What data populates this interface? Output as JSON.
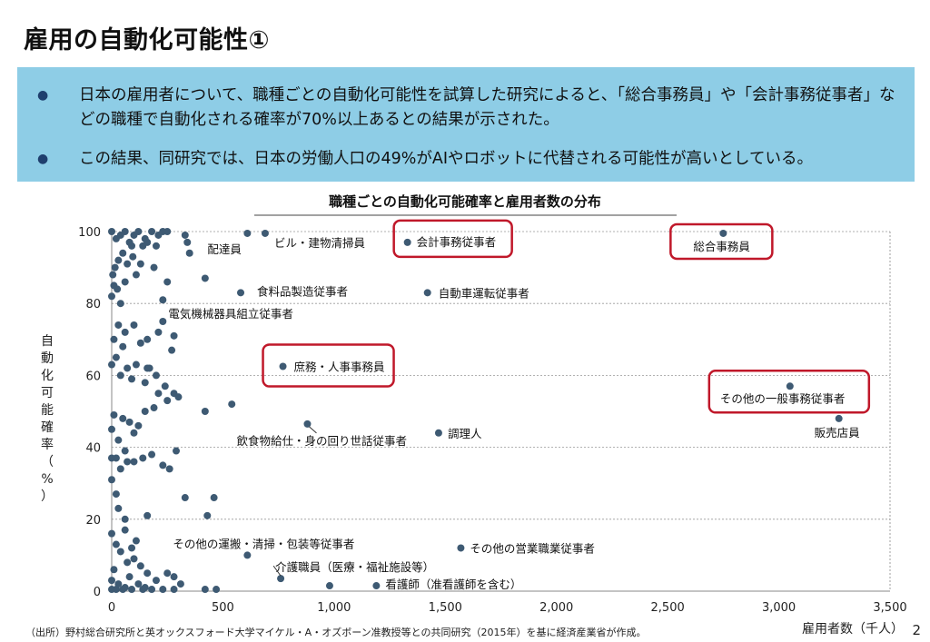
{
  "slide": {
    "title": "雇用の自動化可能性①",
    "page_number": "2",
    "source_note": "（出所）野村総合研究所と英オックスフォード大学マイケル・A・オズボーン准教授等との共同研究（2015年）を基に経済産業省が作成。"
  },
  "bullets": [
    {
      "text": "日本の雇用者について、職種ごとの自動化可能性を試算した研究によると、「総合事務員」や「会計事務従事者」などの職種で自動化される確率が70%以上あるとの結果が示された。"
    },
    {
      "text": "この結果、同研究では、日本の労働人口の49%がAIやロボットに代替される可能性が高いとしている。"
    }
  ],
  "colors": {
    "info_box_bg": "#8ecde6",
    "bullet_dot": "#1f3f6e",
    "marker": "#3e5a73",
    "highlight_box": "#c0182a",
    "grid": "#999999"
  },
  "chart_data": {
    "type": "scatter",
    "title": "職種ごとの自動化可能確率と雇用者数の分布",
    "xlabel": "雇用者数（千人）",
    "ylabel": "自動化可能確率（%）",
    "xlim": [
      0,
      3500
    ],
    "ylim": [
      0,
      100
    ],
    "x_ticks": [
      0,
      500,
      1000,
      1500,
      2000,
      2500,
      3000,
      3500
    ],
    "x_tick_labels": [
      "0",
      "500",
      "1,000",
      "1,500",
      "2,000",
      "2,500",
      "3,000",
      "3,500"
    ],
    "y_ticks": [
      0,
      20,
      40,
      60,
      80,
      100
    ],
    "y_tick_labels": [
      "0",
      "20",
      "40",
      "60",
      "80",
      "100"
    ],
    "grid": "horizontal dotted",
    "labeled_points": [
      {
        "label": "配達員",
        "x": 610,
        "y": 99.5
      },
      {
        "label": "ビル・建物清掃員",
        "x": 690,
        "y": 99.5
      },
      {
        "label": "会計事務従事者",
        "x": 1330,
        "y": 97,
        "highlight": true
      },
      {
        "label": "総合事務員",
        "x": 2750,
        "y": 99.5,
        "highlight": true
      },
      {
        "label": "食料品製造従事者",
        "x": 580,
        "y": 83
      },
      {
        "label": "電気機械器具組立従事者",
        "x": 230,
        "y": 81
      },
      {
        "label": "自動車運転従事者",
        "x": 1420,
        "y": 83
      },
      {
        "label": "庶務・人事事務員",
        "x": 770,
        "y": 62.5,
        "highlight": true
      },
      {
        "label": "その他の一般事務従事者",
        "x": 3050,
        "y": 57,
        "highlight": true
      },
      {
        "label": "販売店員",
        "x": 3270,
        "y": 48
      },
      {
        "label": "飲食物給仕・身の回り世話従事者",
        "x": 880,
        "y": 46.5
      },
      {
        "label": "調理人",
        "x": 1470,
        "y": 44
      },
      {
        "label": "その他の運搬・清掃・包装等従事者",
        "x": 610,
        "y": 10
      },
      {
        "label": "その他の営業職業従事者",
        "x": 1570,
        "y": 12
      },
      {
        "label": "介護職員（医療・福祉施設等）",
        "x": 760,
        "y": 3.5
      },
      {
        "label": "看護師（准看護師を含む）",
        "x": 1190,
        "y": 1.5
      },
      {
        "label": "",
        "x": 980,
        "y": 1.5
      }
    ],
    "unlabeled_points": [
      [
        0,
        100
      ],
      [
        20,
        98
      ],
      [
        40,
        99
      ],
      [
        60,
        100
      ],
      [
        80,
        97
      ],
      [
        100,
        99
      ],
      [
        120,
        100
      ],
      [
        150,
        98
      ],
      [
        180,
        100
      ],
      [
        210,
        99
      ],
      [
        230,
        100
      ],
      [
        250,
        100
      ],
      [
        140,
        96
      ],
      [
        160,
        97
      ],
      [
        90,
        96
      ],
      [
        50,
        94
      ],
      [
        30,
        92
      ],
      [
        70,
        91
      ],
      [
        110,
        88
      ],
      [
        10,
        85
      ],
      [
        0,
        82
      ],
      [
        25,
        84
      ],
      [
        40,
        80
      ],
      [
        5,
        88
      ],
      [
        60,
        86
      ],
      [
        15,
        90
      ],
      [
        95,
        93
      ],
      [
        130,
        91
      ],
      [
        190,
        90
      ],
      [
        200,
        96
      ],
      [
        330,
        99
      ],
      [
        340,
        97
      ],
      [
        350,
        94
      ],
      [
        420,
        87
      ],
      [
        250,
        86
      ],
      [
        230,
        75
      ],
      [
        210,
        72
      ],
      [
        280,
        71
      ],
      [
        160,
        70
      ],
      [
        130,
        69
      ],
      [
        100,
        74
      ],
      [
        60,
        72
      ],
      [
        30,
        74
      ],
      [
        10,
        70
      ],
      [
        50,
        68
      ],
      [
        20,
        65
      ],
      [
        0,
        63
      ],
      [
        40,
        60
      ],
      [
        70,
        62
      ],
      [
        90,
        59
      ],
      [
        110,
        63
      ],
      [
        150,
        58
      ],
      [
        170,
        62
      ],
      [
        200,
        60
      ],
      [
        240,
        57
      ],
      [
        280,
        55
      ],
      [
        300,
        54
      ],
      [
        250,
        53
      ],
      [
        190,
        51
      ],
      [
        150,
        50
      ],
      [
        120,
        46
      ],
      [
        100,
        44
      ],
      [
        80,
        47
      ],
      [
        50,
        48
      ],
      [
        10,
        49
      ],
      [
        0,
        45
      ],
      [
        30,
        42
      ],
      [
        60,
        39
      ],
      [
        20,
        37
      ],
      [
        0,
        37
      ],
      [
        40,
        34
      ],
      [
        70,
        36
      ],
      [
        100,
        36
      ],
      [
        140,
        37
      ],
      [
        180,
        38
      ],
      [
        230,
        35
      ],
      [
        260,
        34
      ],
      [
        290,
        39
      ],
      [
        420,
        50
      ],
      [
        540,
        52
      ],
      [
        270,
        67
      ],
      [
        430,
        21
      ],
      [
        460,
        26
      ],
      [
        330,
        26
      ],
      [
        160,
        21
      ],
      [
        20,
        27
      ],
      [
        0,
        31
      ],
      [
        30,
        23
      ],
      [
        60,
        20
      ],
      [
        0,
        16
      ],
      [
        20,
        13
      ],
      [
        40,
        11
      ],
      [
        70,
        8
      ],
      [
        100,
        9
      ],
      [
        130,
        7
      ],
      [
        160,
        5
      ],
      [
        10,
        6
      ],
      [
        0,
        3
      ],
      [
        30,
        2
      ],
      [
        60,
        1
      ],
      [
        80,
        4
      ],
      [
        120,
        2
      ],
      [
        150,
        1
      ],
      [
        200,
        3
      ],
      [
        250,
        5
      ],
      [
        280,
        4
      ],
      [
        310,
        2
      ],
      [
        0,
        0.5
      ],
      [
        20,
        0.5
      ],
      [
        50,
        0.5
      ],
      [
        90,
        0.5
      ],
      [
        140,
        0.5
      ],
      [
        180,
        0.5
      ],
      [
        230,
        0.5
      ],
      [
        280,
        0.5
      ],
      [
        420,
        0.5
      ],
      [
        470,
        0.5
      ],
      [
        110,
        14
      ],
      [
        90,
        12
      ],
      [
        60,
        17
      ],
      [
        160,
        62
      ],
      [
        210,
        55
      ]
    ]
  }
}
